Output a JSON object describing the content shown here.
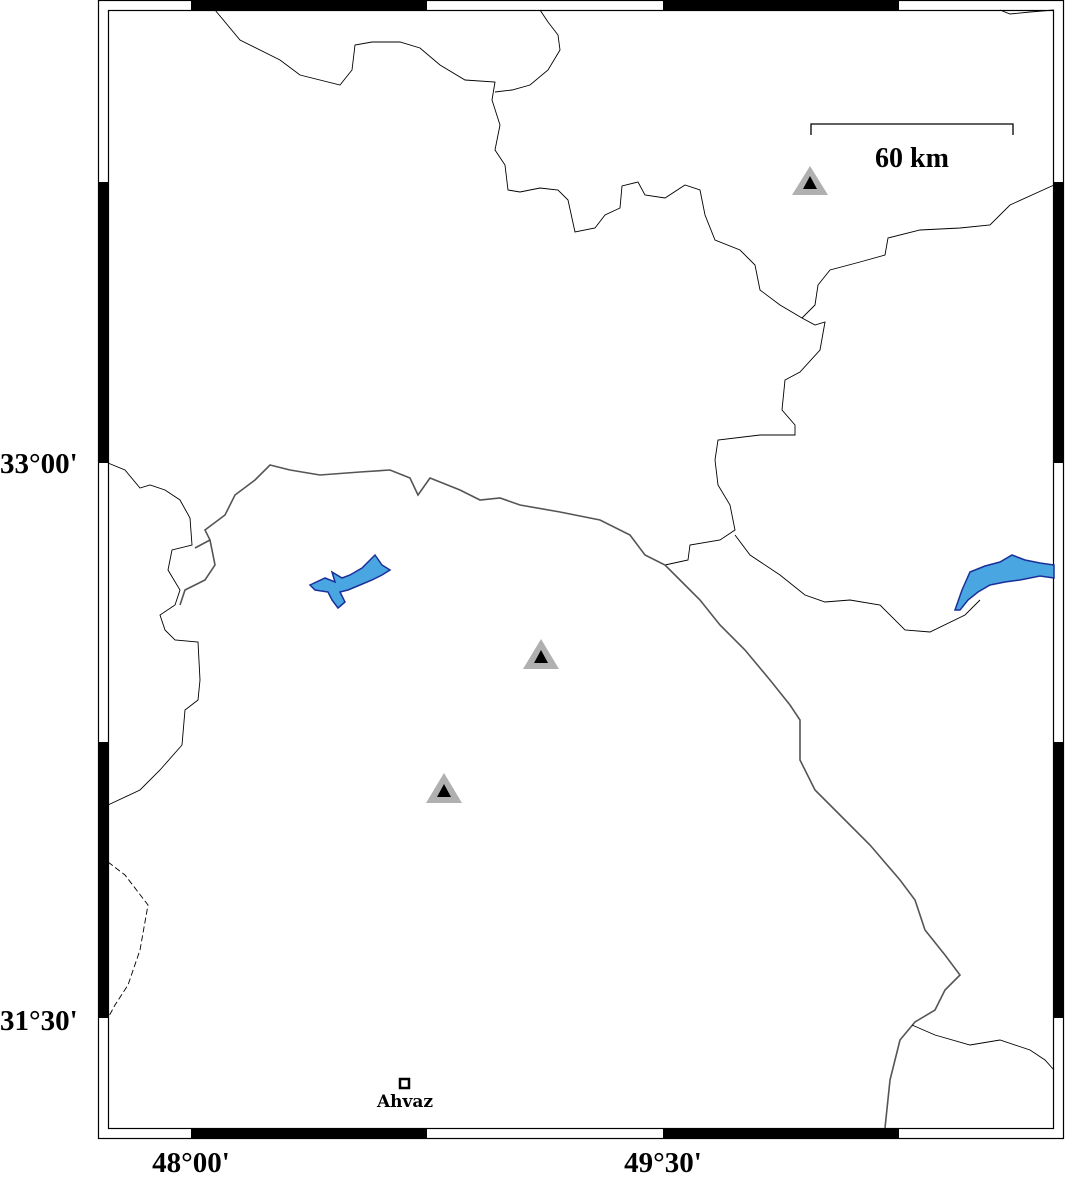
{
  "map": {
    "lon_ticks": [
      "48°00'",
      "49°30'"
    ],
    "lat_ticks": [
      "33°00'",
      "31°30'"
    ],
    "scale_bar": {
      "label": "60 km"
    },
    "cities": [
      {
        "name": "Ahvaz",
        "symbol": "square"
      }
    ],
    "stations": [
      {
        "symbol": "triangle"
      },
      {
        "symbol": "triangle"
      },
      {
        "symbol": "triangle"
      }
    ],
    "colors": {
      "water": "#4aa6e0",
      "water_outline": "#1a2f9a",
      "station_outer": "#b0b0b0",
      "station_inner": "#000000"
    }
  }
}
